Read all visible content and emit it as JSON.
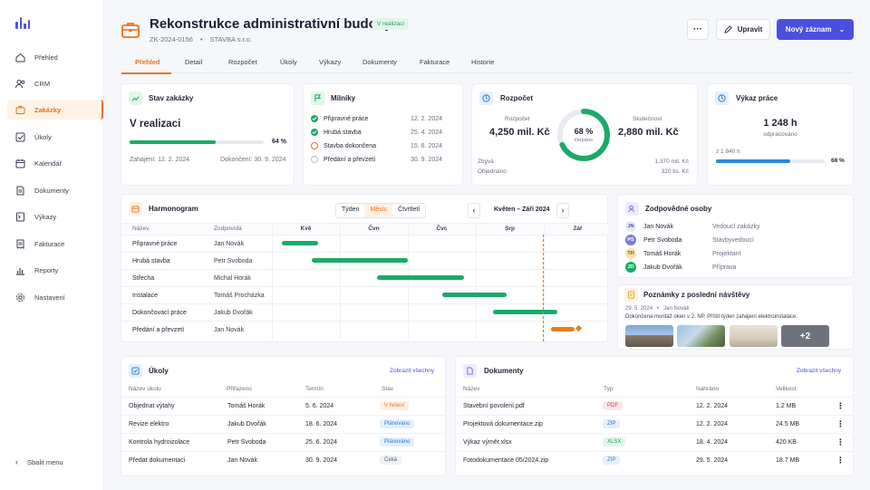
{
  "nav": {
    "items": [
      {
        "label": "Přehled",
        "icon": "home-icon"
      },
      {
        "label": "CRM",
        "icon": "users-icon"
      },
      {
        "label": "Zakázky",
        "icon": "briefcase-icon"
      },
      {
        "label": "Úkoly",
        "icon": "checkbox-icon"
      },
      {
        "label": "Kalendář",
        "icon": "calendar-icon"
      },
      {
        "label": "Dokumenty",
        "icon": "document-icon"
      },
      {
        "label": "Výkazy",
        "icon": "timesheet-icon"
      },
      {
        "label": "Fakturace",
        "icon": "invoice-icon"
      },
      {
        "label": "Reporty",
        "icon": "chart-icon"
      },
      {
        "label": "Nastavení",
        "icon": "gear-icon"
      }
    ],
    "collapse_label": "Sbalit menu"
  },
  "header": {
    "title": "Rekonstrukce administrativní budovy",
    "status": "V realizaci",
    "code": "ZK-2024-0156",
    "client": "STAVBA s.r.o.",
    "edit_label": "Upravit",
    "new_label": "Nový záznam",
    "more_label": "···"
  },
  "tabs": [
    "Přehled",
    "Detail",
    "Rozpočet",
    "Úkoly",
    "Výkazy",
    "Dokumenty",
    "Fakturace",
    "Historie"
  ],
  "status_card": {
    "title": "Stav zakázky",
    "value": "V realizaci",
    "progress_label": "64 %",
    "progress": 0.64,
    "start": "Zahájení: 12. 2. 2024",
    "end": "Dokončení: 30. 9. 2024"
  },
  "milestones": {
    "title": "Milníky",
    "items": [
      {
        "label": "Připravné práce",
        "date": "12. 2. 2024",
        "state": "done"
      },
      {
        "label": "Hrubá stavba",
        "date": "25. 4. 2024",
        "state": "done"
      },
      {
        "label": "Stavba dokončena",
        "date": "15. 8. 2024",
        "state": "progress"
      },
      {
        "label": "Předání a převzetí",
        "date": "30. 9. 2024",
        "state": "todo"
      }
    ]
  },
  "budget": {
    "title": "Rozpočet",
    "budget_label": "Rozpočet",
    "budget_value": "4,250 mil. Kč",
    "actual_label": "Skutečnost",
    "actual_value": "2,880 mil. Kč",
    "pct": "68 %",
    "pct_value": 0.68,
    "pct_caption": "čerpáno",
    "left_label": "Zbývá",
    "left_value": "1,370 mil. Kč",
    "ordered_label": "Objednáno",
    "ordered_value": "320 tis. Kč"
  },
  "work": {
    "title": "Výkaz práce",
    "hours": "1 248 h",
    "caption": "odpracováno",
    "total": "z 1 840 h",
    "pct": "68 %",
    "progress": 0.68
  },
  "harmonogram": {
    "title": "Harmonogram",
    "views": [
      "Týden",
      "Měsíc",
      "Čtvrtletí"
    ],
    "active_view": "Měsíc",
    "range": "Květen – Září 2024",
    "col_name": "Název",
    "col_resp": "Zodpovídá",
    "months": [
      "Kvě",
      "Čvn",
      "Čvc",
      "Srp",
      "Zář"
    ],
    "rows": [
      {
        "name": "Připravné práce",
        "resp": "Jan Novák",
        "start": 0.14,
        "end": 0.68,
        "color": "#1aab68"
      },
      {
        "name": "Hrubá stavba",
        "resp": "Petr Svoboda",
        "start": 0.59,
        "end": 2.0,
        "color": "#1aab68"
      },
      {
        "name": "Střecha",
        "resp": "Michal Horák",
        "start": 1.55,
        "end": 2.82,
        "color": "#1aab68"
      },
      {
        "name": "Instalace",
        "resp": "Tomáš Procházka",
        "start": 2.5,
        "end": 3.45,
        "color": "#1aab68"
      },
      {
        "name": "Dokončovací práce",
        "resp": "Jakub Dvořák",
        "start": 3.25,
        "end": 4.2,
        "color": "#1aab68"
      },
      {
        "name": "Předání a převzetí",
        "resp": "Jan Novák",
        "start": 4.1,
        "end": 4.45,
        "color": "#f07a1a"
      }
    ],
    "today": 3.98
  },
  "people": {
    "title": "Zodpovědné osoby",
    "items": [
      {
        "initials": "JN",
        "name": "Jan Novák",
        "role": "Vedoucí zakázky",
        "bg": "#e8e9f6",
        "fg": "#4b4fa0"
      },
      {
        "initials": "PS",
        "name": "Petr Svoboda",
        "role": "Stavbyvedoucí",
        "bg": "#7c79d8",
        "fg": "#fff"
      },
      {
        "initials": "TH",
        "name": "Tomáš Horák",
        "role": "Projektant",
        "bg": "#f5e3a6",
        "fg": "#7a5a00"
      },
      {
        "initials": "JD",
        "name": "Jakub Dvořák",
        "role": "Příprava",
        "bg": "#1aab68",
        "fg": "#fff"
      }
    ]
  },
  "notes": {
    "title": "Poznámky z poslední návštěvy",
    "date": "29. 5. 2024",
    "author": "Jan Novák",
    "text": "Dokončena montáž oken v 2. NP. Příští týden zahájení elektroinstalace.",
    "more": "+2"
  },
  "tasks": {
    "title": "Úkoly",
    "link": "Zobrazit všechny",
    "cols": [
      "Název úkolu",
      "Přiřazeno",
      "Termín",
      "Stav"
    ],
    "rows": [
      {
        "name": "Objednat výtahy",
        "who": "Tomáš Horák",
        "date": "5. 6. 2024",
        "status": "V řešení",
        "sbg": "#fff0e0",
        "sfg": "#e9711c"
      },
      {
        "name": "Revize elektro",
        "who": "Jakub Dvořák",
        "date": "18. 6. 2024",
        "status": "Plánováno",
        "sbg": "#e4f0fb",
        "sfg": "#2a77c9"
      },
      {
        "name": "Kontrola hydroizolace",
        "who": "Petr Svoboda",
        "date": "25. 6. 2024",
        "status": "Plánováno",
        "sbg": "#e4f0fb",
        "sfg": "#2a77c9"
      },
      {
        "name": "Předat dokumentaci",
        "who": "Jan Novák",
        "date": "30. 9. 2024",
        "status": "Čeká",
        "sbg": "#eef0f4",
        "sfg": "#555b6b"
      }
    ]
  },
  "documents": {
    "title": "Dokumenty",
    "link": "Zobrazit všechny",
    "cols": [
      "Název",
      "Typ",
      "Nahráno",
      "Velikost"
    ],
    "rows": [
      {
        "name": "Stavební povolení.pdf",
        "type": "PDF",
        "date": "12. 2. 2024",
        "size": "1.2 MB",
        "tbg": "#fde7ea",
        "tfg": "#d43a4f"
      },
      {
        "name": "Projektová dokumentace.zip",
        "type": "ZIP",
        "date": "12. 2. 2024",
        "size": "24.5 MB",
        "tbg": "#e4f0fb",
        "tfg": "#2a77c9"
      },
      {
        "name": "Výkaz výměr.xlsx",
        "type": "XLSX",
        "date": "18. 4. 2024",
        "size": "420 KB",
        "tbg": "#e3f5ea",
        "tfg": "#1f9d5a"
      },
      {
        "name": "Fotodokumentace 05/2024.zip",
        "type": "ZIP",
        "date": "29. 5. 2024",
        "size": "18.7 MB",
        "tbg": "#e4f0fb",
        "tfg": "#2a77c9"
      }
    ]
  },
  "colors": {
    "accent": "#e9711c",
    "primary": "#4b4fe0",
    "success": "#1aab68"
  }
}
